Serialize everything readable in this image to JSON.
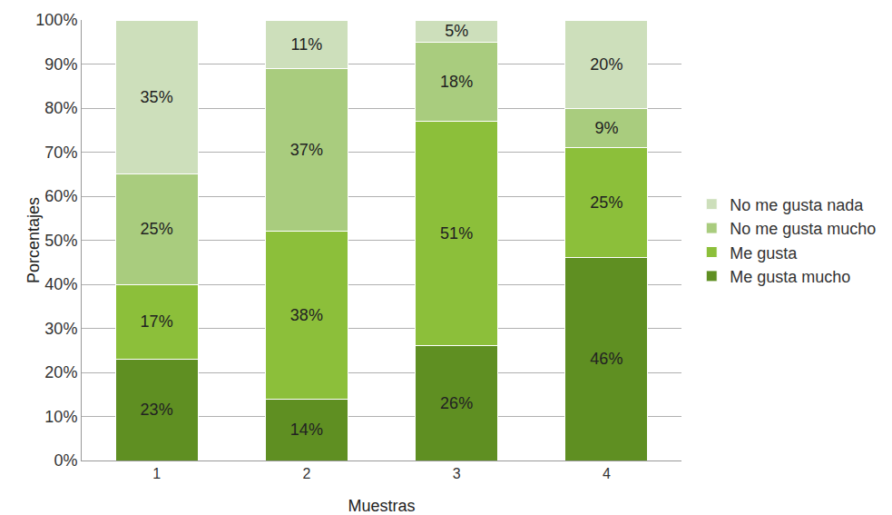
{
  "chart_data": {
    "type": "bar",
    "stacked": true,
    "data_labels": true,
    "grid": true,
    "legend": "right",
    "x_label": "Muestras",
    "y_label": "Porcentajes",
    "categories": [
      "1",
      "2",
      "3",
      "4"
    ],
    "ylim": [
      0,
      100
    ],
    "yticks": [
      {
        "value": 0,
        "label": "0%"
      },
      {
        "value": 10,
        "label": "10%"
      },
      {
        "value": 20,
        "label": "20%"
      },
      {
        "value": 30,
        "label": "30%"
      },
      {
        "value": 40,
        "label": "40%"
      },
      {
        "value": 50,
        "label": "50%"
      },
      {
        "value": 60,
        "label": "60%"
      },
      {
        "value": 70,
        "label": "70%"
      },
      {
        "value": 80,
        "label": "80%"
      },
      {
        "value": 90,
        "label": "90%"
      },
      {
        "value": 100,
        "label": "100%"
      }
    ],
    "series": [
      {
        "name": "Me gusta mucho",
        "color": "#5f8f22",
        "values": [
          23,
          14,
          26,
          46
        ],
        "value_labels": [
          "23%",
          "14%",
          "26%",
          "46%"
        ]
      },
      {
        "name": "Me gusta",
        "color": "#8cbf3a",
        "values": [
          17,
          38,
          51,
          25
        ],
        "value_labels": [
          "17%",
          "38%",
          "51%",
          "25%"
        ]
      },
      {
        "name": "No me gusta mucho",
        "color": "#a9cc7e",
        "values": [
          25,
          37,
          18,
          9
        ],
        "value_labels": [
          "25%",
          "37%",
          "18%",
          "9%"
        ]
      },
      {
        "name": "No me gusta nada",
        "color": "#cddfbb",
        "values": [
          35,
          11,
          5,
          20
        ],
        "value_labels": [
          "35%",
          "11%",
          "5%",
          "20%"
        ]
      }
    ]
  }
}
